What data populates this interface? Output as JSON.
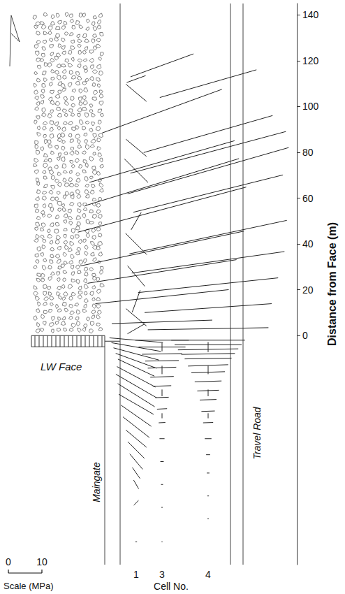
{
  "chart_data": {
    "type": "vector",
    "ylabel": "Distance from Face (m)",
    "ylim": [
      -100,
      145
    ],
    "yticks": [
      0,
      20,
      40,
      60,
      80,
      100,
      120,
      140
    ],
    "tick_labels": "y",
    "grid": false,
    "color": "#222222",
    "x_title": "Cell No.",
    "scale": {
      "label": "Scale (MPa)",
      "ticks": [
        0,
        10
      ]
    },
    "annotations": {
      "face": "LW Face",
      "maingate": "Maingate",
      "road": "Travel Road"
    },
    "cells": [
      {
        "cell": "1",
        "distance": [
          -2,
          -5,
          -8,
          -11,
          -14,
          -18,
          -22,
          -26,
          -30,
          -35,
          -40,
          -45,
          -50,
          -55,
          -60,
          -65,
          -73,
          -90,
          3,
          8,
          15,
          26,
          40,
          50,
          72,
          82,
          106,
          112
        ],
        "magnitude": [
          16,
          15,
          14,
          13,
          12,
          13,
          14,
          13,
          12,
          11,
          10,
          8,
          7,
          6,
          4,
          3,
          2,
          0.5,
          6,
          8,
          7,
          8,
          9,
          6,
          10,
          8,
          8,
          6
        ],
        "angle": [
          -5,
          -10,
          -15,
          -20,
          -25,
          -28,
          -30,
          -32,
          -30,
          -35,
          -38,
          -40,
          -45,
          -50,
          -55,
          -60,
          45,
          0,
          30,
          -40,
          70,
          -50,
          -45,
          60,
          -45,
          -40,
          -40,
          20
        ]
      },
      {
        "cell": "3",
        "distance": [
          -2,
          -5,
          -8,
          -11,
          -14,
          -18,
          -22,
          -27,
          -32,
          -38,
          -45,
          -55,
          -65,
          -75,
          -90,
          -5,
          -15,
          -25,
          -35,
          6,
          17,
          28,
          38,
          55,
          67,
          76,
          98,
          118
        ],
        "magnitude": [
          16,
          14,
          12,
          10,
          8.5,
          7,
          5.5,
          4,
          3,
          2,
          1.5,
          1,
          0.6,
          0.4,
          0.3,
          2.5,
          2.5,
          2,
          1.5,
          30,
          40,
          45,
          50,
          52,
          48,
          45,
          38,
          20
        ],
        "angle": [
          0,
          0,
          1,
          1,
          2,
          2,
          2,
          2,
          3,
          3,
          0,
          0,
          0,
          0,
          0,
          90,
          90,
          90,
          90,
          2,
          6,
          9,
          12,
          15,
          17,
          16,
          20,
          20
        ]
      },
      {
        "cell": "4",
        "distance": [
          -2,
          -4,
          -6,
          -8,
          -10,
          -13,
          -16,
          -20,
          -24,
          -28,
          -33,
          -38,
          -45,
          -52,
          -60,
          -70,
          -80,
          -5,
          -15,
          -25,
          -35,
          3,
          12,
          22,
          32,
          43,
          62,
          72,
          80,
          88,
          110
        ],
        "magnitude": [
          22,
          20,
          18,
          16,
          14,
          12,
          10,
          8,
          6.5,
          5,
          4,
          3,
          2,
          1.2,
          0.8,
          0.5,
          0.4,
          3,
          2.5,
          2,
          1.5,
          36,
          38,
          42,
          46,
          48,
          46,
          50,
          48,
          40,
          30
        ],
        "angle": [
          0,
          0,
          1,
          1,
          1,
          2,
          2,
          2,
          2,
          2,
          2,
          2,
          0,
          0,
          0,
          0,
          0,
          90,
          90,
          90,
          90,
          1,
          4,
          6,
          8,
          12,
          14,
          16,
          15,
          16,
          16
        ]
      }
    ]
  }
}
